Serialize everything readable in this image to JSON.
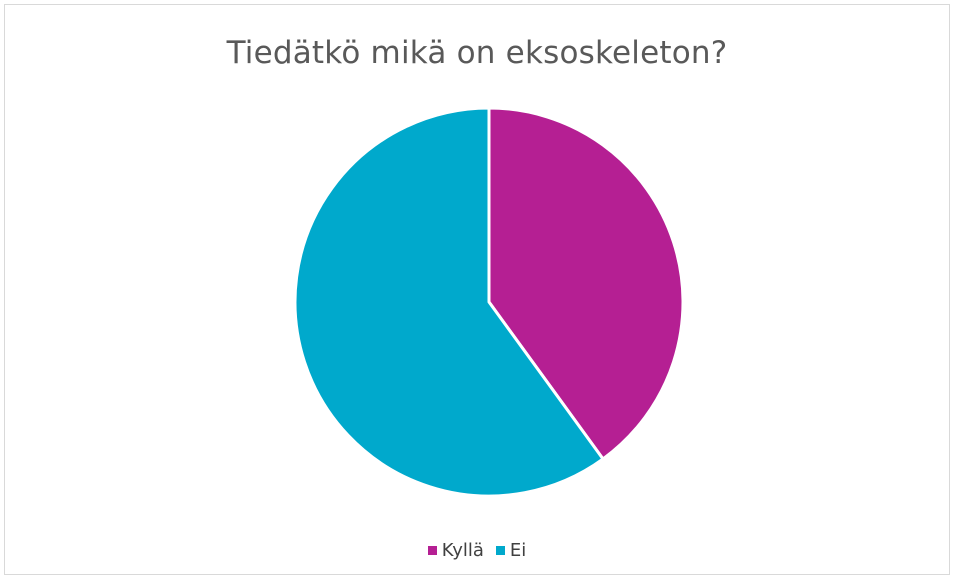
{
  "chart_data": {
    "type": "pie",
    "title": "Tiedätkö mikä on eksoskeleton?",
    "categories": [
      "Kyllä",
      "Ei"
    ],
    "values": [
      40,
      60
    ],
    "colors": [
      "#b51f93",
      "#00a9cc"
    ],
    "legend_position": "bottom"
  }
}
